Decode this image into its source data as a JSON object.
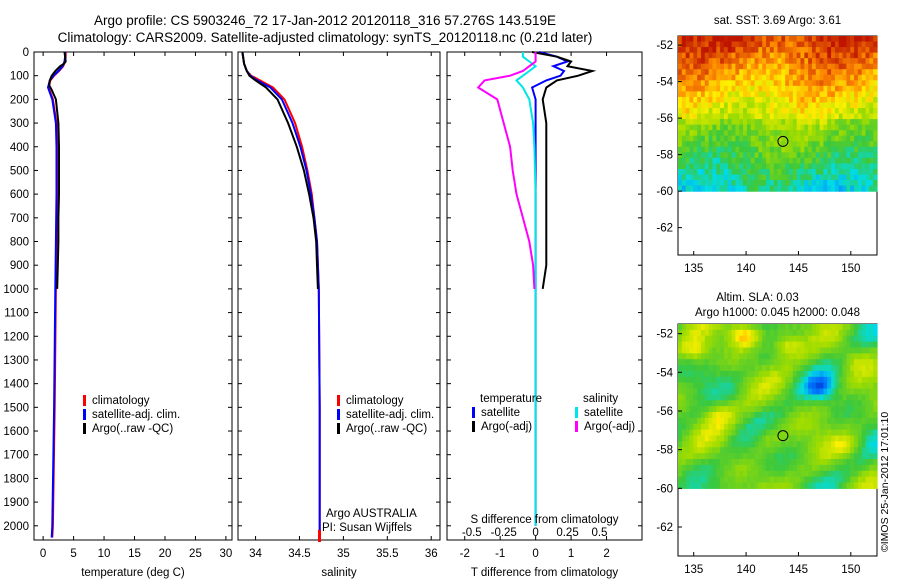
{
  "header": {
    "line1": "Argo profile: CS 5903246_72 17-Jan-2012 20120118_316 57.276S 143.519E",
    "line2": "Climatology: CARS2009. Satellite-adjusted climatology: synTS_20120118.nc (0.21d later)"
  },
  "colors": {
    "climatology": "#ff0000",
    "satellite": "#0000ff",
    "argo": "#000000",
    "satellite_s": "#00e5e5",
    "argo_s": "#ff00ff"
  },
  "depth_ticks": [
    0,
    100,
    200,
    300,
    400,
    500,
    600,
    700,
    800,
    900,
    1000,
    1100,
    1200,
    1300,
    1400,
    1500,
    1600,
    1700,
    1800,
    1900,
    2000
  ],
  "chart_data": [
    {
      "type": "line",
      "panel": "temperature",
      "xlabel": "temperature (deg C)",
      "ylabel": "",
      "xlim": [
        -1.5,
        31
      ],
      "ylim": [
        2060,
        0
      ],
      "x_ticks": [
        "0",
        "5",
        "10",
        "15",
        "20",
        "25",
        "30"
      ],
      "x_tick_values": [
        0,
        5,
        10,
        15,
        20,
        25,
        30
      ],
      "legend": [
        "climatology",
        "satellite-adj. clim.",
        "Argo(..raw -QC)"
      ],
      "series": [
        {
          "name": "climatology",
          "color": "#ff0000",
          "depth": [
            0,
            20,
            40,
            60,
            80,
            100,
            120,
            150,
            200,
            300,
            400,
            600,
            800,
            1000,
            1500,
            2000,
            2050
          ],
          "values": [
            3.7,
            3.7,
            3.6,
            3.3,
            2.6,
            1.8,
            1.2,
            0.9,
            1.6,
            2.2,
            2.3,
            2.3,
            2.2,
            2.1,
            1.9,
            1.6,
            1.5
          ]
        },
        {
          "name": "satellite-adj. clim.",
          "color": "#0000ff",
          "depth": [
            0,
            20,
            40,
            60,
            80,
            100,
            120,
            150,
            200,
            300,
            400,
            600,
            800,
            1000,
            1500,
            2000,
            2050
          ],
          "values": [
            3.6,
            3.6,
            3.5,
            3.2,
            2.5,
            1.7,
            1.1,
            0.8,
            1.5,
            2.1,
            2.2,
            2.2,
            2.1,
            2.0,
            1.8,
            1.5,
            1.4
          ]
        },
        {
          "name": "Argo(..raw -QC)",
          "color": "#000000",
          "depth": [
            0,
            20,
            40,
            50,
            60,
            80,
            100,
            120,
            140,
            160,
            200,
            300,
            400,
            500,
            600,
            700,
            800,
            900,
            1000
          ],
          "values": [
            3.5,
            3.6,
            3.7,
            3.4,
            2.8,
            2.0,
            1.4,
            1.1,
            1.0,
            1.4,
            2.1,
            2.5,
            2.6,
            2.6,
            2.6,
            2.5,
            2.5,
            2.4,
            2.3
          ]
        }
      ]
    },
    {
      "type": "line",
      "panel": "salinity",
      "xlabel": "salinity",
      "ylabel": "",
      "xlim": [
        33.8,
        36.1
      ],
      "ylim": [
        2060,
        0
      ],
      "x_ticks": [
        "34",
        "34.5",
        "35",
        "35.5",
        "36"
      ],
      "x_tick_values": [
        34,
        34.5,
        35,
        35.5,
        36
      ],
      "legend": [
        "climatology",
        "satellite-adj. clim.",
        "Argo(..raw -QC)"
      ],
      "annotations": [
        "Argo AUSTRALIA",
        "PI: Susan Wijffels"
      ],
      "series": [
        {
          "name": "climatology",
          "color": "#ff0000",
          "depth": [
            0,
            50,
            80,
            100,
            120,
            150,
            200,
            300,
            400,
            500,
            600,
            700,
            800,
            900,
            1000,
            1500,
            2000,
            2050
          ],
          "values": [
            33.85,
            33.87,
            33.9,
            33.95,
            34.05,
            34.2,
            34.33,
            34.45,
            34.53,
            34.59,
            34.64,
            34.67,
            34.7,
            34.71,
            34.72,
            34.73,
            34.73,
            34.73
          ]
        },
        {
          "name": "satellite-adj. clim.",
          "color": "#0000ff",
          "depth": [
            0,
            50,
            80,
            100,
            120,
            150,
            200,
            300,
            400,
            500,
            600,
            700,
            800,
            900,
            1000,
            1500,
            2000,
            2050
          ],
          "values": [
            33.85,
            33.87,
            33.9,
            33.94,
            34.02,
            34.17,
            34.3,
            34.42,
            34.51,
            34.58,
            34.63,
            34.67,
            34.7,
            34.71,
            34.72,
            34.73,
            34.73,
            34.73
          ]
        },
        {
          "name": "Argo(..raw -QC)",
          "color": "#000000",
          "depth": [
            0,
            50,
            80,
            100,
            120,
            150,
            200,
            300,
            400,
            500,
            600,
            700,
            800,
            900,
            1000
          ],
          "values": [
            33.85,
            33.87,
            33.9,
            33.93,
            34.0,
            34.12,
            34.25,
            34.37,
            34.47,
            34.55,
            34.61,
            34.66,
            34.69,
            34.7,
            34.71
          ]
        }
      ]
    },
    {
      "type": "line",
      "panel": "difference",
      "xlabel": "T difference from climatology",
      "x2label": "S difference from climatology",
      "xlim": [
        -2.5,
        3
      ],
      "ylim": [
        2060,
        0
      ],
      "x_ticks": [
        "-2",
        "-1",
        "0",
        "1",
        "2"
      ],
      "x_tick_values": [
        -2,
        -1,
        0,
        1,
        2
      ],
      "s_ticks": [
        "-0.5",
        "-0.25",
        "0",
        "0.25",
        "0.5"
      ],
      "s_tick_values": [
        -0.5,
        -0.25,
        0,
        0.25,
        0.5
      ],
      "legend_headers": [
        "temperature",
        "salinity"
      ],
      "legend": [
        "satellite",
        "Argo(-adj)",
        "satellite",
        "Argo(-adj)"
      ],
      "series": [
        {
          "name": "satellite",
          "group": "temperature",
          "color": "#0000ff",
          "depth": [
            0,
            20,
            40,
            60,
            80,
            100,
            120,
            150,
            200,
            300,
            400,
            600,
            800,
            1000,
            1500,
            2000
          ],
          "values": [
            0.1,
            0.6,
            0.9,
            0.5,
            0.8,
            0.7,
            0.3,
            -0.1,
            0.0,
            0.0,
            0.0,
            0.0,
            0.0,
            0.0,
            0.0,
            0.0
          ]
        },
        {
          "name": "Argo(-adj)",
          "group": "temperature",
          "color": "#000000",
          "depth": [
            0,
            20,
            40,
            60,
            80,
            100,
            120,
            150,
            200,
            300,
            400,
            500,
            600,
            700,
            800,
            900,
            1000
          ],
          "values": [
            -0.1,
            0.6,
            1.0,
            0.9,
            1.6,
            1.2,
            0.6,
            0.3,
            0.2,
            0.3,
            0.3,
            0.3,
            0.3,
            0.3,
            0.3,
            0.3,
            0.2
          ]
        },
        {
          "name": "satellite",
          "group": "salinity",
          "color": "#00e5e5",
          "depth": [
            0,
            20,
            40,
            60,
            80,
            100,
            120,
            150,
            200,
            300,
            400,
            600,
            800,
            1000,
            1500,
            2000
          ],
          "values": [
            -0.1,
            -0.1,
            -0.05,
            0.0,
            -0.05,
            -0.1,
            -0.15,
            -0.1,
            -0.05,
            -0.02,
            -0.01,
            0.0,
            0.0,
            0.0,
            0.0,
            0.0
          ]
        },
        {
          "name": "Argo(-adj)",
          "group": "salinity",
          "color": "#ff00ff",
          "depth": [
            0,
            20,
            40,
            60,
            80,
            100,
            120,
            150,
            200,
            300,
            400,
            500,
            600,
            700,
            800,
            900,
            1000
          ],
          "values": [
            0.0,
            0.0,
            0.0,
            -0.05,
            -0.1,
            -0.2,
            -0.4,
            -0.45,
            -0.3,
            -0.25,
            -0.2,
            -0.18,
            -0.15,
            -0.1,
            -0.05,
            -0.02,
            -0.01
          ]
        }
      ]
    },
    {
      "type": "heatmap",
      "panel": "sst-map",
      "title": "sat. SST: 3.69  Argo: 3.61",
      "xlim": [
        133.5,
        152.5
      ],
      "ylim": [
        -63.5,
        -51.5
      ],
      "x_ticks": [
        "135",
        "140",
        "145",
        "150"
      ],
      "x_tick_values": [
        135,
        140,
        145,
        150
      ],
      "y_ticks": [
        "-52",
        "-54",
        "-56",
        "-58",
        "-60",
        "-62"
      ],
      "y_tick_values": [
        -52,
        -54,
        -56,
        -58,
        -60,
        -62
      ],
      "data_lat_range": [
        -60,
        -51.5
      ],
      "marker": {
        "lon": 143.519,
        "lat": -57.276
      }
    },
    {
      "type": "heatmap",
      "panel": "sla-map",
      "title": "Altim. SLA: 0.03",
      "subtitle": "Argo h1000: 0.045 h2000: 0.048",
      "xlim": [
        133.5,
        152.5
      ],
      "ylim": [
        -63.5,
        -51.5
      ],
      "x_ticks": [
        "135",
        "140",
        "145",
        "150"
      ],
      "x_tick_values": [
        135,
        140,
        145,
        150
      ],
      "y_ticks": [
        "-52",
        "-54",
        "-56",
        "-58",
        "-60",
        "-62"
      ],
      "y_tick_values": [
        -52,
        -54,
        -56,
        -58,
        -60,
        -62
      ],
      "data_lat_range": [
        -60,
        -51.5
      ],
      "marker": {
        "lon": 143.519,
        "lat": -57.276
      }
    }
  ],
  "credit": "©IMOS 25-Jan-2012 17:01:10"
}
